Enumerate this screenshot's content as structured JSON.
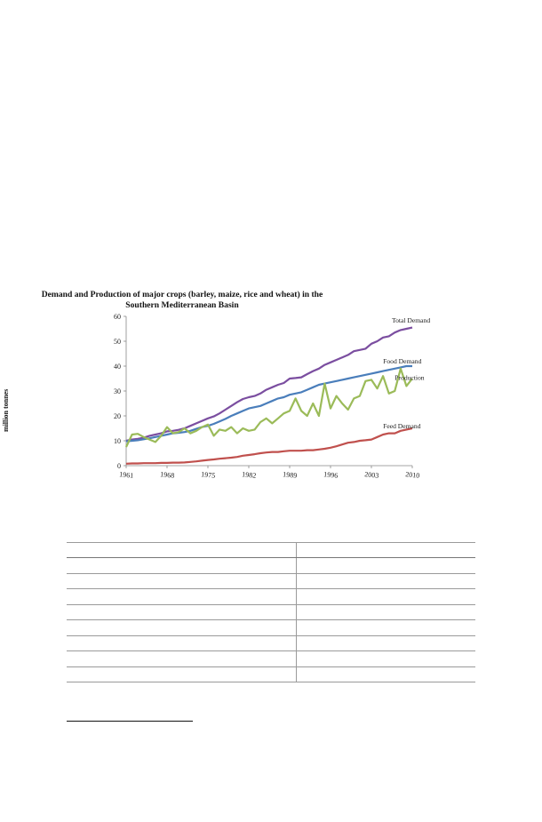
{
  "chart_data": {
    "type": "line",
    "title": "Demand and Production of major crops (barley, maize, rice and wheat) in the Southern Mediterranean Basin",
    "title_lines": [
      "Demand and Production of major crops (barley, maize, rice and wheat) in the",
      "Southern Mediterranean Basin"
    ],
    "xlabel": "",
    "ylabel": "million tonnes",
    "xlim": [
      1961,
      2010
    ],
    "ylim": [
      0,
      60
    ],
    "x_ticks": [
      "1961",
      "1968",
      "1975",
      "1982",
      "1989",
      "1996",
      "2003",
      "2010"
    ],
    "y_ticks": [
      "0",
      "10",
      "20",
      "30",
      "40",
      "50",
      "60"
    ],
    "grid": false,
    "legend": "inline labels at line ends",
    "x": [
      1961,
      1962,
      1963,
      1964,
      1965,
      1966,
      1967,
      1968,
      1969,
      1970,
      1971,
      1972,
      1973,
      1974,
      1975,
      1976,
      1977,
      1978,
      1979,
      1980,
      1981,
      1982,
      1983,
      1984,
      1985,
      1986,
      1987,
      1988,
      1989,
      1990,
      1991,
      1992,
      1993,
      1994,
      1995,
      1996,
      1997,
      1998,
      1999,
      2000,
      2001,
      2002,
      2003,
      2004,
      2005,
      2006,
      2007,
      2008,
      2009,
      2010
    ],
    "series": [
      {
        "name": "Total Demand",
        "color": "#7b4ea0",
        "values": [
          10,
          10.5,
          10.8,
          11.2,
          12,
          12.5,
          13,
          13.8,
          14,
          14.4,
          15,
          16,
          17,
          18,
          19,
          19.8,
          21,
          22.5,
          24,
          25.5,
          26.8,
          27.5,
          28,
          29,
          30.5,
          31.5,
          32.5,
          33.2,
          35,
          35.2,
          35.5,
          36.8,
          38,
          39,
          40.5,
          41.5,
          42.5,
          43.5,
          44.5,
          46,
          46.5,
          47,
          49,
          50,
          51.5,
          52,
          53.5,
          54.5,
          55,
          55.5
        ]
      },
      {
        "name": "Food Demand",
        "color": "#4a7ebb",
        "values": [
          9.8,
          10,
          10.2,
          10.6,
          11,
          11.5,
          12,
          12.5,
          13,
          13.2,
          13.5,
          14,
          14.8,
          15.5,
          16,
          16.8,
          17.8,
          18.8,
          20,
          21,
          22,
          23,
          23.5,
          24,
          25,
          26,
          27,
          27.5,
          28.5,
          29,
          29.5,
          30.5,
          31.5,
          32.5,
          33,
          33.5,
          34,
          34.5,
          35,
          35.5,
          36,
          36.5,
          37,
          37.5,
          38,
          38.5,
          39,
          39.5,
          40,
          40
        ]
      },
      {
        "name": "Production",
        "color": "#9bbb59",
        "values": [
          7.5,
          12.5,
          12.8,
          11.5,
          10.5,
          9.5,
          12,
          15.5,
          13,
          13.5,
          15,
          13,
          14,
          15.5,
          16.5,
          12,
          14.5,
          14,
          15.5,
          13,
          15,
          14,
          14.5,
          17.5,
          19,
          17,
          19,
          21,
          22,
          27,
          22,
          20,
          25,
          20,
          33,
          23,
          28,
          25,
          22.5,
          27,
          28,
          34,
          34.5,
          31,
          36,
          29,
          30,
          39,
          32,
          35
        ]
      },
      {
        "name": "Feed Demand",
        "color": "#c0504d",
        "values": [
          0.8,
          0.9,
          0.9,
          1,
          1,
          1,
          1.1,
          1.1,
          1.2,
          1.2,
          1.3,
          1.5,
          1.7,
          2,
          2.3,
          2.5,
          2.8,
          3,
          3.2,
          3.5,
          4,
          4.3,
          4.6,
          5,
          5.3,
          5.5,
          5.5,
          5.8,
          6,
          6,
          6,
          6.2,
          6.2,
          6.5,
          6.8,
          7.2,
          7.8,
          8.5,
          9.2,
          9.5,
          10,
          10.2,
          10.5,
          11.5,
          12.5,
          13,
          13,
          14,
          14.5,
          15
        ]
      }
    ]
  },
  "table": {
    "rows": 10,
    "cells": []
  }
}
